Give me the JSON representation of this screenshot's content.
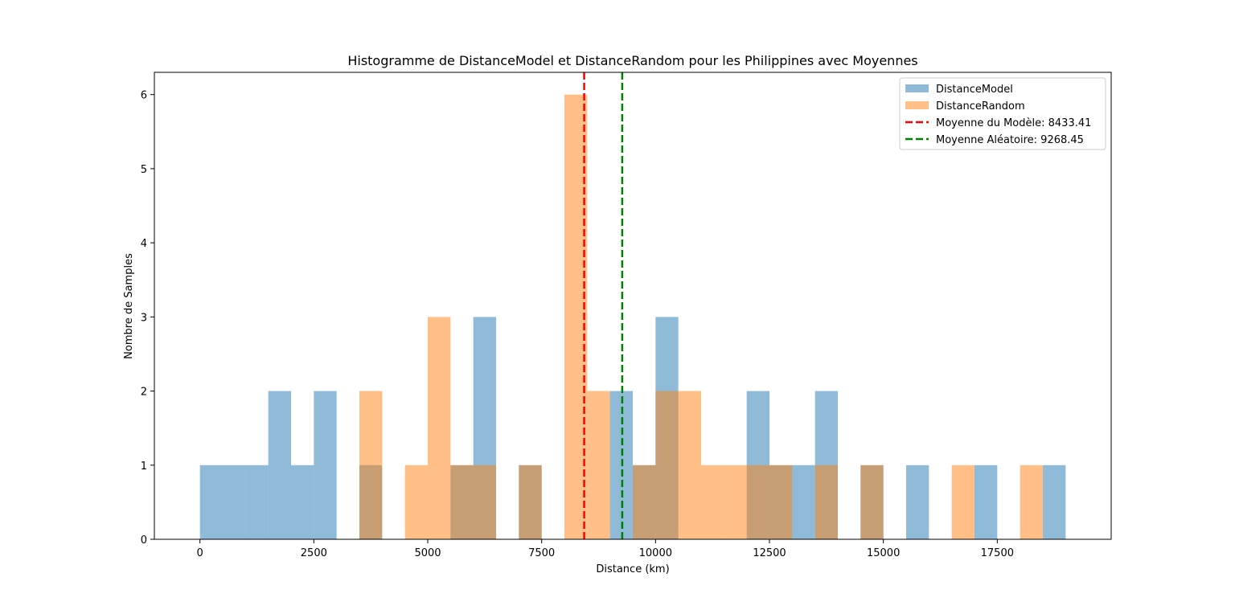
{
  "chart_data": {
    "type": "bar",
    "title": "Histogramme de DistanceModel et DistanceRandom pour les Philippines avec Moyennes",
    "xlabel": "Distance (km)",
    "ylabel": "Nombre de Samples",
    "xlim": [
      -1000,
      20000
    ],
    "ylim": [
      0,
      6.3
    ],
    "xticks": [
      0,
      2500,
      5000,
      7500,
      10000,
      12500,
      15000,
      17500
    ],
    "xtick_labels": [
      "0",
      "2500",
      "5000",
      "7500",
      "10000",
      "12500",
      "15000",
      "17500"
    ],
    "yticks": [
      0,
      1,
      2,
      3,
      4,
      5,
      6
    ],
    "ytick_labels": [
      "0",
      "1",
      "2",
      "3",
      "4",
      "5",
      "6"
    ],
    "grid": false,
    "legend_position": "top-right",
    "series": [
      {
        "name": "DistanceModel",
        "color": "#1f77b4",
        "opacity": 0.5,
        "bins": [
          {
            "start": 0,
            "end": 500,
            "count": 1
          },
          {
            "start": 500,
            "end": 1000,
            "count": 1
          },
          {
            "start": 1000,
            "end": 1500,
            "count": 1
          },
          {
            "start": 1500,
            "end": 2000,
            "count": 2
          },
          {
            "start": 2000,
            "end": 2500,
            "count": 1
          },
          {
            "start": 2500,
            "end": 3000,
            "count": 2
          },
          {
            "start": 3500,
            "end": 4000,
            "count": 1
          },
          {
            "start": 5500,
            "end": 6000,
            "count": 1
          },
          {
            "start": 6000,
            "end": 6500,
            "count": 3
          },
          {
            "start": 7000,
            "end": 7500,
            "count": 1
          },
          {
            "start": 9000,
            "end": 9500,
            "count": 2
          },
          {
            "start": 9500,
            "end": 10000,
            "count": 1
          },
          {
            "start": 10000,
            "end": 10500,
            "count": 3
          },
          {
            "start": 12000,
            "end": 12500,
            "count": 2
          },
          {
            "start": 12500,
            "end": 13000,
            "count": 1
          },
          {
            "start": 13000,
            "end": 13500,
            "count": 1
          },
          {
            "start": 13500,
            "end": 14000,
            "count": 2
          },
          {
            "start": 14500,
            "end": 15000,
            "count": 1
          },
          {
            "start": 15500,
            "end": 16000,
            "count": 1
          },
          {
            "start": 17000,
            "end": 17500,
            "count": 1
          },
          {
            "start": 18500,
            "end": 19000,
            "count": 1
          }
        ]
      },
      {
        "name": "DistanceRandom",
        "color": "#ff7f0e",
        "opacity": 0.5,
        "bins": [
          {
            "start": 3500,
            "end": 4000,
            "count": 2
          },
          {
            "start": 4500,
            "end": 5000,
            "count": 1
          },
          {
            "start": 5000,
            "end": 5500,
            "count": 3
          },
          {
            "start": 5500,
            "end": 6000,
            "count": 1
          },
          {
            "start": 6000,
            "end": 6500,
            "count": 1
          },
          {
            "start": 7000,
            "end": 7500,
            "count": 1
          },
          {
            "start": 8000,
            "end": 8500,
            "count": 6
          },
          {
            "start": 8500,
            "end": 9000,
            "count": 2
          },
          {
            "start": 9500,
            "end": 10000,
            "count": 1
          },
          {
            "start": 10000,
            "end": 10500,
            "count": 2
          },
          {
            "start": 10500,
            "end": 11000,
            "count": 2
          },
          {
            "start": 11000,
            "end": 11500,
            "count": 1
          },
          {
            "start": 11500,
            "end": 12000,
            "count": 1
          },
          {
            "start": 12000,
            "end": 12500,
            "count": 1
          },
          {
            "start": 12500,
            "end": 13000,
            "count": 1
          },
          {
            "start": 13500,
            "end": 14000,
            "count": 1
          },
          {
            "start": 14500,
            "end": 15000,
            "count": 1
          },
          {
            "start": 16500,
            "end": 17000,
            "count": 1
          },
          {
            "start": 18000,
            "end": 18500,
            "count": 1
          }
        ]
      }
    ],
    "reference_lines": [
      {
        "name": "Moyenne du Modèle: 8433.41",
        "x": 8433.41,
        "color": "#ff0000",
        "style": "dashed"
      },
      {
        "name": "Moyenne Aléatoire: 9268.45",
        "x": 9268.45,
        "color": "#008000",
        "style": "dashed"
      }
    ]
  }
}
